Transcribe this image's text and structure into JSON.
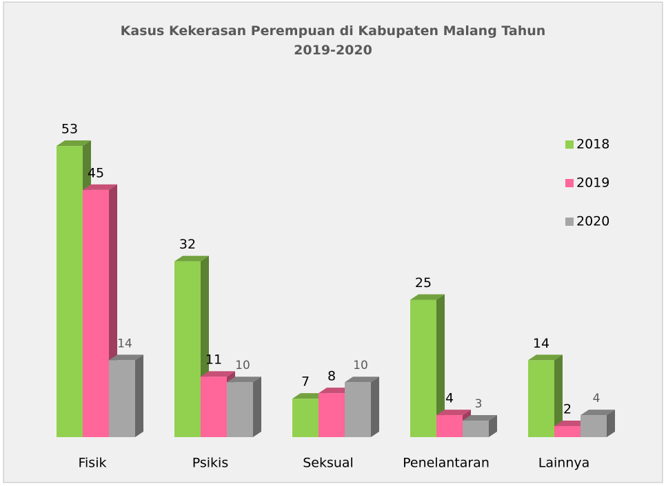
{
  "chart_data": {
    "type": "bar3d",
    "title": "Kasus Kekerasan Perempuan di Kabupaten Malang Tahun 2019-2020",
    "categories": [
      "Fisik",
      "Psikis",
      "Seksual",
      "Penelantaran",
      "Lainnya"
    ],
    "series": [
      {
        "name": "2018",
        "color": "#92d050",
        "values": [
          53,
          32,
          7,
          25,
          14
        ]
      },
      {
        "name": "2019",
        "color": "#ff6699",
        "values": [
          45,
          11,
          8,
          4,
          2
        ]
      },
      {
        "name": "2020",
        "color": "#a6a6a6",
        "values": [
          14,
          10,
          10,
          3,
          4
        ]
      }
    ],
    "legend": "right"
  }
}
